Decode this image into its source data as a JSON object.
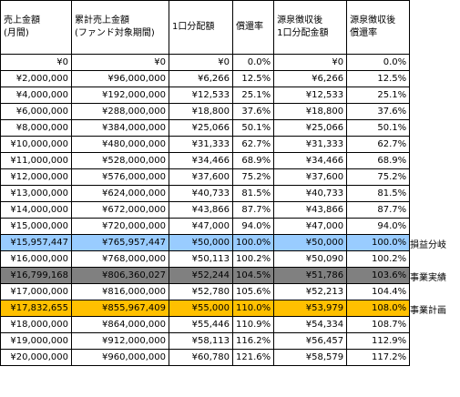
{
  "headers": [
    [
      "売上金額",
      "(月間)"
    ],
    [
      "累計売上金額",
      "(ファンド対象期間)"
    ],
    [
      "1口分配額",
      ""
    ],
    [
      "償還率",
      ""
    ],
    [
      "源泉徴収後",
      "1口分配金額"
    ],
    [
      "源泉徴収後",
      "償還率"
    ]
  ],
  "rows": [
    {
      "cells": [
        "¥0",
        "¥0",
        "¥0",
        "0.0%",
        "¥0",
        "0.0%"
      ],
      "highlight": null,
      "label": ""
    },
    {
      "cells": [
        "¥2,000,000",
        "¥96,000,000",
        "¥6,266",
        "12.5%",
        "¥6,266",
        "12.5%"
      ],
      "highlight": null,
      "label": ""
    },
    {
      "cells": [
        "¥4,000,000",
        "¥192,000,000",
        "¥12,533",
        "25.1%",
        "¥12,533",
        "25.1%"
      ],
      "highlight": null,
      "label": ""
    },
    {
      "cells": [
        "¥6,000,000",
        "¥288,000,000",
        "¥18,800",
        "37.6%",
        "¥18,800",
        "37.6%"
      ],
      "highlight": null,
      "label": ""
    },
    {
      "cells": [
        "¥8,000,000",
        "¥384,000,000",
        "¥25,066",
        "50.1%",
        "¥25,066",
        "50.1%"
      ],
      "highlight": null,
      "label": ""
    },
    {
      "cells": [
        "¥10,000,000",
        "¥480,000,000",
        "¥31,333",
        "62.7%",
        "¥31,333",
        "62.7%"
      ],
      "highlight": null,
      "label": ""
    },
    {
      "cells": [
        "¥11,000,000",
        "¥528,000,000",
        "¥34,466",
        "68.9%",
        "¥34,466",
        "68.9%"
      ],
      "highlight": null,
      "label": ""
    },
    {
      "cells": [
        "¥12,000,000",
        "¥576,000,000",
        "¥37,600",
        "75.2%",
        "¥37,600",
        "75.2%"
      ],
      "highlight": null,
      "label": ""
    },
    {
      "cells": [
        "¥13,000,000",
        "¥624,000,000",
        "¥40,733",
        "81.5%",
        "¥40,733",
        "81.5%"
      ],
      "highlight": null,
      "label": ""
    },
    {
      "cells": [
        "¥14,000,000",
        "¥672,000,000",
        "¥43,866",
        "87.7%",
        "¥43,866",
        "87.7%"
      ],
      "highlight": null,
      "label": ""
    },
    {
      "cells": [
        "¥15,000,000",
        "¥720,000,000",
        "¥47,000",
        "94.0%",
        "¥47,000",
        "94.0%"
      ],
      "highlight": null,
      "label": ""
    },
    {
      "cells": [
        "¥15,957,447",
        "¥765,957,447",
        "¥50,000",
        "100.0%",
        "¥50,000",
        "100.0%"
      ],
      "highlight": "blue",
      "label": "損益分岐"
    },
    {
      "cells": [
        "¥16,000,000",
        "¥768,000,000",
        "¥50,113",
        "100.2%",
        "¥50,090",
        "100.2%"
      ],
      "highlight": null,
      "label": ""
    },
    {
      "cells": [
        "¥16,799,168",
        "¥806,360,027",
        "¥52,244",
        "104.5%",
        "¥51,786",
        "103.6%"
      ],
      "highlight": "gray",
      "label": "事業実績"
    },
    {
      "cells": [
        "¥17,000,000",
        "¥816,000,000",
        "¥52,780",
        "105.6%",
        "¥52,213",
        "104.4%"
      ],
      "highlight": null,
      "label": ""
    },
    {
      "cells": [
        "¥17,832,655",
        "¥855,967,409",
        "¥55,000",
        "110.0%",
        "¥53,979",
        "108.0%"
      ],
      "highlight": "amber",
      "label": "事業計画"
    },
    {
      "cells": [
        "¥18,000,000",
        "¥864,000,000",
        "¥55,446",
        "110.9%",
        "¥54,334",
        "108.7%"
      ],
      "highlight": null,
      "label": ""
    },
    {
      "cells": [
        "¥19,000,000",
        "¥912,000,000",
        "¥58,113",
        "116.2%",
        "¥56,457",
        "112.9%"
      ],
      "highlight": null,
      "label": ""
    },
    {
      "cells": [
        "¥20,000,000",
        "¥960,000,000",
        "¥60,780",
        "121.6%",
        "¥58,579",
        "117.2%"
      ],
      "highlight": null,
      "label": ""
    }
  ],
  "colors": {
    "blue": "#99ccff",
    "gray": "#808080",
    "amber": "#ffc000"
  }
}
